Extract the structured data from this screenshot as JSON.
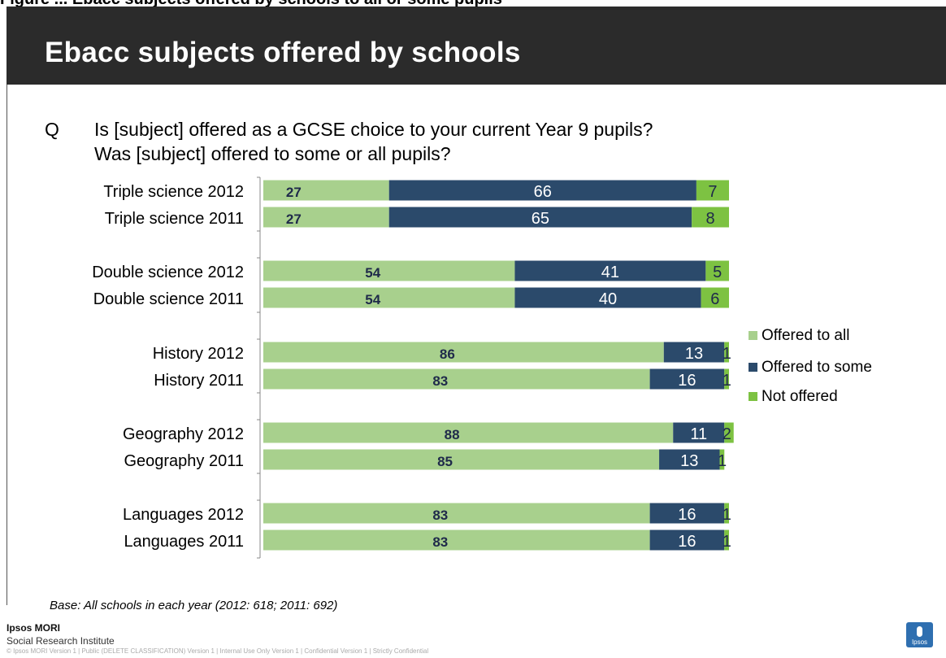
{
  "caption": "Figure ... Ebacc subjects offered by schools to all or some pupils",
  "header": {
    "title": "Ebacc subjects offered by schools"
  },
  "question": {
    "mark": "Q",
    "line1": "Is [subject] offered as a GCSE choice to your current Year 9 pupils?",
    "line2": "Was [subject] offered to some or all pupils?"
  },
  "colors": {
    "offered_all": "#a8d08d",
    "offered_some": "#2b4a6b",
    "not_offered": "#7dc242"
  },
  "chart_data": {
    "type": "bar",
    "orientation": "horizontal",
    "stacked": true,
    "categories": [
      "Triple science 2012",
      "Triple science 2011",
      "Double science 2012",
      "Double science 2011",
      "History 2012",
      "History 2011",
      "Geography 2012",
      "Geography 2011",
      "Languages 2012",
      "Languages 2011"
    ],
    "series": [
      {
        "name": "Offered to all",
        "values": [
          27,
          27,
          54,
          54,
          86,
          83,
          88,
          85,
          83,
          83
        ]
      },
      {
        "name": "Offered to some",
        "values": [
          66,
          65,
          41,
          40,
          13,
          16,
          11,
          13,
          16,
          16
        ]
      },
      {
        "name": "Not offered",
        "values": [
          7,
          8,
          5,
          6,
          1,
          1,
          2,
          1,
          1,
          1
        ]
      }
    ],
    "xlim": [
      0,
      100
    ],
    "legend_position": "right",
    "grid": false
  },
  "footer": {
    "base": "Base: All  schools in each year (2012: 618; 2011: 692)",
    "brand": "Ipsos MORI",
    "brand_sub": "Social Research Institute",
    "legal": "© Ipsos MORI    Version 1 | Public (DELETE CLASSIFICATION)   Version 1 | Internal Use Only   Version 1 | Confidential    Version 1 | Strictly Confidential",
    "logo_text": "Ipsos"
  }
}
